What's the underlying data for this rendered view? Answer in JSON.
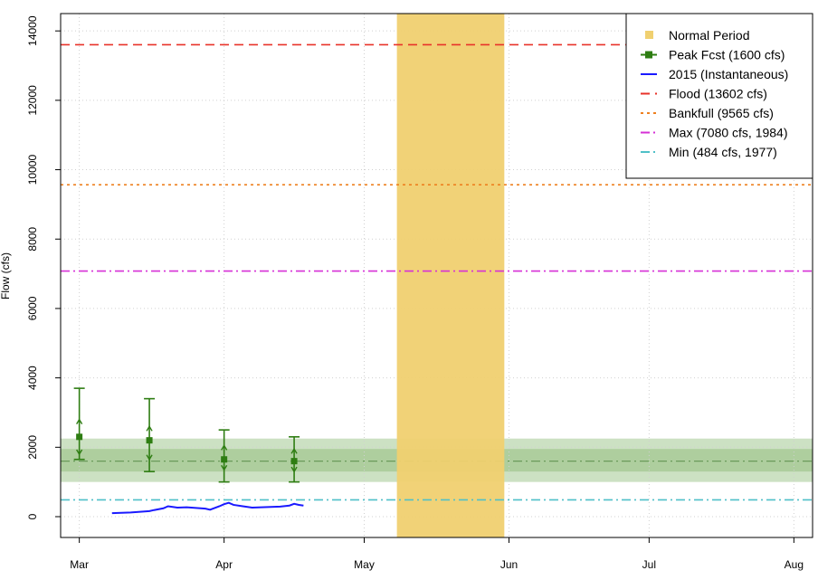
{
  "chart_data": {
    "type": "line",
    "title": "",
    "xlabel": "",
    "ylabel": "Flow (cfs)",
    "xlim": [
      "2015-02-25",
      "2015-08-05"
    ],
    "ylim": [
      -600,
      14500
    ],
    "grid": true,
    "legend_position": "top-right",
    "x_ticks": [
      {
        "date": "2015-03-01",
        "label": "Mar"
      },
      {
        "date": "2015-04-01",
        "label": "Apr"
      },
      {
        "date": "2015-05-01",
        "label": "May"
      },
      {
        "date": "2015-06-01",
        "label": "Jun"
      },
      {
        "date": "2015-07-01",
        "label": "Jul"
      },
      {
        "date": "2015-08-01",
        "label": "Aug"
      }
    ],
    "y_ticks": [
      0,
      2000,
      4000,
      6000,
      8000,
      10000,
      12000,
      14000
    ],
    "normal_period": {
      "name": "Normal Period",
      "start": "2015-05-08",
      "end": "2015-05-31",
      "color": "#f0d070"
    },
    "forecast_bands": {
      "outer": [
        1000,
        2250
      ],
      "inner": [
        1300,
        1950
      ],
      "median": 1600,
      "color": "#8fbc7a"
    },
    "peak_forecasts": {
      "name": "Peak Fcst (1600 cfs)",
      "color": "#2e7d12",
      "points": [
        {
          "date": "2015-03-01",
          "value": 2300,
          "low": 1650,
          "high": 3700,
          "mid_low": 1800,
          "mid_high": 2800
        },
        {
          "date": "2015-03-16",
          "value": 2200,
          "low": 1300,
          "high": 3400,
          "mid_low": 1650,
          "mid_high": 2600
        },
        {
          "date": "2015-04-01",
          "value": 1650,
          "low": 1000,
          "high": 2500,
          "mid_low": 1350,
          "mid_high": 2050
        },
        {
          "date": "2015-04-16",
          "value": 1600,
          "low": 1000,
          "high": 2300,
          "mid_low": 1300,
          "mid_high": 1950
        }
      ]
    },
    "observed": {
      "name": "2015  (Instantaneous)",
      "color": "#1a1aff",
      "points": [
        {
          "date": "2015-03-08",
          "value": 100
        },
        {
          "date": "2015-03-10",
          "value": 110
        },
        {
          "date": "2015-03-12",
          "value": 120
        },
        {
          "date": "2015-03-14",
          "value": 140
        },
        {
          "date": "2015-03-16",
          "value": 160
        },
        {
          "date": "2015-03-17",
          "value": 190
        },
        {
          "date": "2015-03-19",
          "value": 240
        },
        {
          "date": "2015-03-20",
          "value": 300
        },
        {
          "date": "2015-03-21",
          "value": 280
        },
        {
          "date": "2015-03-22",
          "value": 260
        },
        {
          "date": "2015-03-24",
          "value": 270
        },
        {
          "date": "2015-03-26",
          "value": 250
        },
        {
          "date": "2015-03-28",
          "value": 230
        },
        {
          "date": "2015-03-29",
          "value": 200
        },
        {
          "date": "2015-03-31",
          "value": 300
        },
        {
          "date": "2015-04-01",
          "value": 360
        },
        {
          "date": "2015-04-02",
          "value": 400
        },
        {
          "date": "2015-04-03",
          "value": 340
        },
        {
          "date": "2015-04-05",
          "value": 300
        },
        {
          "date": "2015-04-07",
          "value": 260
        },
        {
          "date": "2015-04-09",
          "value": 270
        },
        {
          "date": "2015-04-11",
          "value": 280
        },
        {
          "date": "2015-04-13",
          "value": 290
        },
        {
          "date": "2015-04-15",
          "value": 320
        },
        {
          "date": "2015-04-16",
          "value": 370
        },
        {
          "date": "2015-04-17",
          "value": 340
        },
        {
          "date": "2015-04-18",
          "value": 320
        }
      ]
    },
    "reference_lines": [
      {
        "name": "Flood (13602 cfs)",
        "value": 13602,
        "color": "#e8322a",
        "style": "dashed"
      },
      {
        "name": "Bankfull (9565 cfs)",
        "value": 9565,
        "color": "#ee8020",
        "style": "dotted"
      },
      {
        "name": "Max (7080 cfs, 1984)",
        "value": 7080,
        "color": "#d630d6",
        "style": "dashdot"
      },
      {
        "name": "Min (484 cfs, 1977)",
        "value": 484,
        "color": "#4fc0c8",
        "style": "dashdot"
      }
    ],
    "legend": [
      {
        "label": "Normal Period",
        "kind": "square",
        "color": "#f0d070"
      },
      {
        "label": "Peak Fcst (1600 cfs)",
        "kind": "line-square",
        "color": "#2e7d12"
      },
      {
        "label": "2015  (Instantaneous)",
        "kind": "line",
        "color": "#1a1aff",
        "style": "solid"
      },
      {
        "label": "Flood (13602 cfs)",
        "kind": "line",
        "color": "#e8322a",
        "style": "dashed"
      },
      {
        "label": "Bankfull (9565 cfs)",
        "kind": "line",
        "color": "#ee8020",
        "style": "dotted"
      },
      {
        "label": "Max (7080 cfs, 1984)",
        "kind": "line",
        "color": "#d630d6",
        "style": "dashdot"
      },
      {
        "label": "Min (484 cfs, 1977)",
        "kind": "line",
        "color": "#4fc0c8",
        "style": "dashdot"
      }
    ]
  }
}
